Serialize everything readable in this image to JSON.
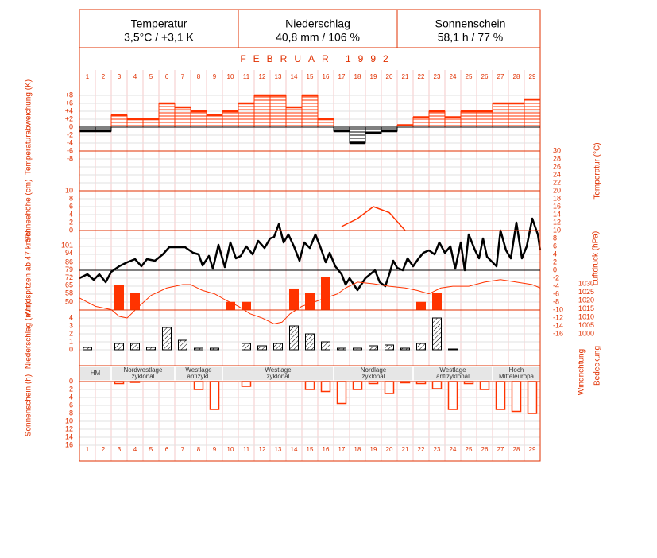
{
  "header": [
    {
      "title": "Temperatur",
      "value": "3,5°C / +3,1 K"
    },
    {
      "title": "Niederschlag",
      "value": "40,8 mm / 106 %"
    },
    {
      "title": "Sonnenschein",
      "value": "58,1 h / 77 %"
    }
  ],
  "month_title": "FEBRUAR 1992",
  "days": [
    1,
    2,
    3,
    4,
    5,
    6,
    7,
    8,
    9,
    10,
    11,
    12,
    13,
    14,
    15,
    16,
    17,
    18,
    19,
    20,
    21,
    22,
    23,
    24,
    25,
    26,
    27,
    28,
    29
  ],
  "weather_types": [
    {
      "lines": [
        "HM"
      ],
      "from": 1,
      "to": 2
    },
    {
      "lines": [
        "Nordwestlage",
        "zyklonal"
      ],
      "from": 3,
      "to": 6
    },
    {
      "lines": [
        "Westlage",
        "antizykl."
      ],
      "from": 7,
      "to": 9
    },
    {
      "lines": [
        "Westlage",
        "zyklonal"
      ],
      "from": 10,
      "to": 16
    },
    {
      "lines": [
        "Nordlage",
        "zyklonal"
      ],
      "from": 17,
      "to": 21
    },
    {
      "lines": [
        "Westlage",
        "antizyklonal"
      ],
      "from": 22,
      "to": 26
    },
    {
      "lines": [
        "Hoch",
        "Mitteleuropa"
      ],
      "from": 27,
      "to": 29
    }
  ],
  "extra_labels": [
    "Windrichtung",
    "Bedeckung"
  ],
  "chart_data": [
    {
      "type": "bar",
      "y_label": "Temperaturabweichung (K)",
      "axis_side": "left",
      "ylim": [
        -8,
        8
      ],
      "yticks": [
        {
          "value": 8,
          "label": "+8"
        },
        {
          "value": 6,
          "label": "+6"
        },
        {
          "value": 4,
          "label": "+4"
        },
        {
          "value": 2,
          "label": "+2"
        },
        0,
        -2,
        -4,
        -6,
        -8
      ],
      "values": [
        -1,
        -1,
        3,
        2,
        2,
        6,
        5,
        4,
        3,
        4,
        6,
        8,
        8,
        5,
        8,
        2,
        -1,
        -4,
        -1.5,
        -1,
        0.5,
        2.5,
        4,
        2.5,
        4,
        4,
        6,
        6,
        7
      ],
      "color": "#ff3300",
      "negative_color": "#000000",
      "fill_style": "hatched-horizontal",
      "grid": true
    },
    {
      "type": "line",
      "y_label": "Temperatur (°C)",
      "axis_side": "right",
      "ylim": [
        -16,
        30
      ],
      "yticks": [
        30,
        28,
        26,
        24,
        22,
        20,
        18,
        16,
        14,
        12,
        10,
        8,
        6,
        4,
        2,
        0,
        -2,
        -4,
        -6,
        -8,
        -10,
        -12,
        -14,
        -16
      ],
      "x": [
        0.5,
        1,
        1.4,
        1.75,
        2.15,
        2.5,
        3,
        3.5,
        4,
        4.4,
        4.75,
        5.25,
        5.75,
        6.15,
        6.65,
        7.15,
        7.65,
        8,
        8.25,
        8.65,
        8.9,
        9.25,
        9.65,
        10,
        10.35,
        10.65,
        11,
        11.4,
        11.75,
        12.15,
        12.5,
        12.75,
        13.05,
        13.35,
        13.65,
        14,
        14.35,
        14.65,
        15,
        15.35,
        15.65,
        16,
        16.25,
        16.6,
        17,
        17.25,
        17.5,
        18,
        18.5,
        18.8,
        19.1,
        19.4,
        19.75,
        20,
        20.25,
        20.5,
        20.85,
        21.15,
        21.5,
        21.85,
        22.15,
        22.5,
        22.85,
        23.15,
        23.5,
        23.85,
        24.15,
        24.5,
        24.75,
        25,
        25.4,
        25.65,
        25.9,
        26.15,
        26.5,
        26.75,
        27,
        27.35,
        27.65,
        28,
        28.35,
        28.65,
        29,
        29.35,
        29.5
      ],
      "values": [
        -2,
        -1,
        -2.4,
        -1,
        -3,
        -0.4,
        1,
        2,
        2.8,
        1,
        2.8,
        2.4,
        4,
        5.8,
        5.8,
        5.8,
        4.4,
        4,
        1.2,
        3.6,
        0.4,
        6.4,
        0.8,
        7,
        3,
        3.6,
        6,
        4,
        7.4,
        5.6,
        8,
        8.4,
        11.6,
        7,
        9,
        6,
        2.4,
        7,
        5.6,
        9,
        6,
        2,
        4.4,
        1,
        -1,
        -3.6,
        -2,
        -5,
        -2,
        -1,
        0,
        -3,
        -4,
        -1,
        2.4,
        0.6,
        0,
        3,
        1,
        3,
        4.4,
        5,
        4,
        7,
        4.4,
        6,
        0.4,
        7,
        0,
        9,
        5,
        3,
        8,
        3.4,
        2,
        1,
        10,
        5,
        3,
        12,
        3,
        6,
        13,
        9,
        5
      ],
      "color": "#000000",
      "line_width": 2.5,
      "grid": true
    },
    {
      "type": "line",
      "y_label": "Schneehöhe (cm)",
      "axis_side": "left",
      "ylim": [
        0,
        10
      ],
      "yticks": [
        10,
        8,
        6,
        4,
        2,
        0
      ],
      "values": [
        null,
        null,
        null,
        null,
        null,
        null,
        null,
        null,
        null,
        null,
        null,
        null,
        null,
        null,
        null,
        null,
        1,
        3,
        6,
        4.5,
        0,
        null,
        null,
        null,
        null,
        null,
        null,
        null,
        null
      ],
      "color": "#ff3300",
      "line_width": 1.5,
      "grid": true
    },
    {
      "type": "bar",
      "y_label": "Windspitzen ab 47 km/h",
      "axis_side": "left",
      "ylim": [
        43,
        101
      ],
      "yticks": [
        101,
        94,
        86,
        79,
        72,
        65,
        58,
        50
      ],
      "values": [
        null,
        null,
        65,
        58,
        null,
        null,
        null,
        null,
        null,
        50,
        50,
        null,
        null,
        62,
        58,
        72,
        null,
        null,
        null,
        null,
        null,
        50,
        58,
        null,
        null,
        null,
        null,
        null,
        null
      ],
      "color": "#ff3300",
      "fill_style": "solid",
      "grid": false
    },
    {
      "type": "line",
      "y_label": "Luftdruck (hPa)",
      "axis_side": "right",
      "ylim": [
        1000,
        1030
      ],
      "yticks": [
        1030,
        1025,
        1020,
        1015,
        1010,
        1005,
        1000
      ],
      "x": [
        0.5,
        1.5,
        2.5,
        3,
        3.5,
        4.25,
        5,
        6,
        7,
        7.5,
        8.25,
        9,
        9.75,
        10.5,
        11.25,
        12,
        12.75,
        13.25,
        13.75,
        14.5,
        15.25,
        16,
        16.75,
        17.25,
        18,
        19,
        20,
        21,
        21.75,
        22.5,
        23.25,
        24,
        25,
        26,
        27,
        28,
        29,
        29.5
      ],
      "values": [
        1021.5,
        1016.5,
        1014.5,
        1010.5,
        1009.5,
        1016.5,
        1023,
        1027.5,
        1029.5,
        1029.5,
        1026,
        1024,
        1020,
        1016.5,
        1012,
        1009.5,
        1006,
        1007,
        1012,
        1016.5,
        1019,
        1021.5,
        1024,
        1027.5,
        1031,
        1030,
        1028.5,
        1027.5,
        1026,
        1024,
        1027.5,
        1028.5,
        1028.5,
        1031,
        1032.5,
        1031,
        1029.5,
        1027.5
      ],
      "color": "#ff3300",
      "line_width": 1,
      "grid": false
    },
    {
      "type": "bar",
      "y_label": "Niederschlag (mm)",
      "axis_side": "left",
      "ylim": [
        0,
        4
      ],
      "yticks": [
        4,
        3,
        2,
        1,
        0
      ],
      "values": [
        0.3,
        0,
        0.8,
        0.8,
        0.3,
        2.8,
        1.2,
        0.2,
        0.2,
        0,
        0.8,
        0.5,
        0.8,
        3,
        2,
        1,
        0.2,
        0.2,
        0.5,
        0.6,
        0.2,
        0.8,
        4,
        0.1,
        0,
        0,
        0,
        0,
        0
      ],
      "color": "#000000",
      "fill_style": "hatched-diagonal",
      "grid": true
    },
    {
      "type": "bar",
      "y_label": "Sonnenschein (h)",
      "axis_side": "left",
      "inverted": true,
      "ylim": [
        0,
        16
      ],
      "yticks": [
        0,
        2,
        4,
        6,
        8,
        10,
        12,
        14,
        16
      ],
      "values": [
        0,
        0,
        0.5,
        0.2,
        0,
        0,
        0,
        2,
        7,
        0,
        1.2,
        0,
        0,
        0,
        2,
        2.5,
        5.5,
        2,
        0.5,
        3,
        0.3,
        0.5,
        1.8,
        7,
        0.5,
        2,
        7,
        7.5,
        8
      ],
      "color": "#ff3300",
      "fill_style": "outline",
      "grid": true
    }
  ]
}
